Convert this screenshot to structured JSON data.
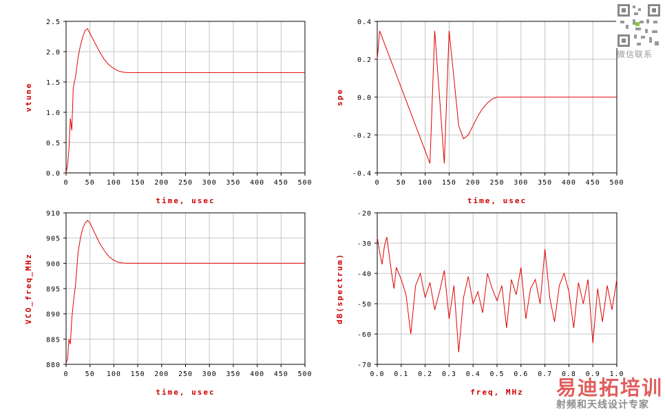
{
  "colors": {
    "trace": "#e00000",
    "grid": "#c4c4c4",
    "axis": "#000000",
    "label": "#cc0000"
  },
  "watermark": {
    "qr_caption": "微信联系",
    "brand": "易迪拓培训",
    "tagline": "射频和天线设计专家"
  },
  "chart_data": [
    {
      "type": "line",
      "title": "",
      "xlabel": "time, usec",
      "ylabel": "vtune",
      "xlim": [
        0,
        500
      ],
      "ylim": [
        0.0,
        2.5
      ],
      "xticks": [
        "0",
        "50",
        "100",
        "150",
        "200",
        "250",
        "300",
        "350",
        "400",
        "450",
        "500"
      ],
      "yticks": [
        "0.0",
        "0.5",
        "1.0",
        "1.5",
        "2.0",
        "2.5"
      ],
      "grid": true,
      "series": [
        {
          "values_x": [
            0,
            3,
            6,
            9,
            12,
            15,
            20,
            25,
            30,
            35,
            40,
            45,
            50,
            60,
            70,
            80,
            90,
            100,
            110,
            120,
            130,
            140,
            200,
            300,
            400,
            500
          ],
          "values_y": [
            0.0,
            0.12,
            0.4,
            0.9,
            0.7,
            1.4,
            1.6,
            1.9,
            2.1,
            2.25,
            2.35,
            2.38,
            2.3,
            2.15,
            2.0,
            1.87,
            1.78,
            1.72,
            1.68,
            1.66,
            1.655,
            1.655,
            1.655,
            1.655,
            1.655,
            1.655
          ]
        }
      ]
    },
    {
      "type": "line",
      "title": "",
      "xlabel": "time, usec",
      "ylabel": "spe",
      "xlim": [
        0,
        500
      ],
      "ylim": [
        -0.4,
        0.4
      ],
      "xticks": [
        "0",
        "50",
        "100",
        "150",
        "200",
        "250",
        "300",
        "350",
        "400",
        "450",
        "500"
      ],
      "yticks": [
        "-0.4",
        "-0.2",
        "0.0",
        "0.2",
        "0.4"
      ],
      "grid": true,
      "series": [
        {
          "values_x": [
            0,
            5,
            110,
            120,
            130,
            140,
            150,
            160,
            170,
            180,
            190,
            200,
            210,
            220,
            230,
            240,
            250,
            300,
            400,
            500
          ],
          "values_y": [
            0.2,
            0.35,
            -0.35,
            0.35,
            0.0,
            -0.35,
            0.35,
            0.1,
            -0.15,
            -0.22,
            -0.2,
            -0.15,
            -0.1,
            -0.06,
            -0.03,
            -0.01,
            0.0,
            0.0,
            0.0,
            0.0
          ]
        }
      ]
    },
    {
      "type": "line",
      "title": "",
      "xlabel": "time, usec",
      "ylabel": "VCO_freq_MHz",
      "xlim": [
        0,
        500
      ],
      "ylim": [
        880,
        910
      ],
      "xticks": [
        "0",
        "50",
        "100",
        "150",
        "200",
        "250",
        "300",
        "350",
        "400",
        "450",
        "500"
      ],
      "yticks": [
        "880",
        "885",
        "890",
        "895",
        "900",
        "905",
        "910"
      ],
      "grid": true,
      "series": [
        {
          "values_x": [
            0,
            3,
            6,
            9,
            12,
            15,
            20,
            25,
            30,
            35,
            40,
            45,
            50,
            60,
            70,
            80,
            90,
            100,
            110,
            120,
            130,
            140,
            200,
            300,
            400,
            500
          ],
          "values_y": [
            880.3,
            881,
            885,
            884,
            889,
            892,
            896,
            902,
            905,
            907,
            908,
            908.5,
            908,
            906,
            904,
            902.5,
            901.3,
            900.6,
            900.2,
            900.05,
            900,
            900,
            900,
            900,
            900,
            900
          ]
        }
      ]
    },
    {
      "type": "line",
      "title": "",
      "xlabel": "freq, MHz",
      "ylabel": "dB(spectrum)",
      "xlim": [
        0.0,
        1.0
      ],
      "ylim": [
        -70,
        -20
      ],
      "xticks": [
        "0.0",
        "0.1",
        "0.2",
        "0.3",
        "0.4",
        "0.5",
        "0.6",
        "0.7",
        "0.8",
        "0.9",
        "1.0"
      ],
      "yticks": [
        "-70",
        "-60",
        "-50",
        "-40",
        "-30",
        "-20"
      ],
      "grid": true,
      "series": [
        {
          "values_x": [
            0.0,
            0.01,
            0.02,
            0.03,
            0.04,
            0.05,
            0.06,
            0.07,
            0.08,
            0.1,
            0.12,
            0.14,
            0.16,
            0.18,
            0.2,
            0.22,
            0.24,
            0.26,
            0.28,
            0.3,
            0.32,
            0.34,
            0.36,
            0.38,
            0.4,
            0.42,
            0.44,
            0.46,
            0.48,
            0.5,
            0.52,
            0.54,
            0.56,
            0.58,
            0.6,
            0.62,
            0.64,
            0.66,
            0.68,
            0.7,
            0.72,
            0.74,
            0.76,
            0.78,
            0.8,
            0.82,
            0.84,
            0.86,
            0.88,
            0.9,
            0.92,
            0.94,
            0.96,
            0.98,
            1.0
          ],
          "values_y": [
            -28,
            -33,
            -37,
            -31,
            -28,
            -34,
            -40,
            -45,
            -38,
            -42,
            -47,
            -60,
            -44,
            -40,
            -48,
            -43,
            -52,
            -46,
            -39,
            -55,
            -44,
            -66,
            -48,
            -41,
            -50,
            -46,
            -53,
            -40,
            -45,
            -49,
            -44,
            -58,
            -42,
            -47,
            -38,
            -55,
            -45,
            -42,
            -50,
            -32,
            -48,
            -56,
            -44,
            -40,
            -46,
            -58,
            -43,
            -50,
            -42,
            -63,
            -45,
            -56,
            -44,
            -52,
            -42
          ]
        }
      ]
    }
  ]
}
